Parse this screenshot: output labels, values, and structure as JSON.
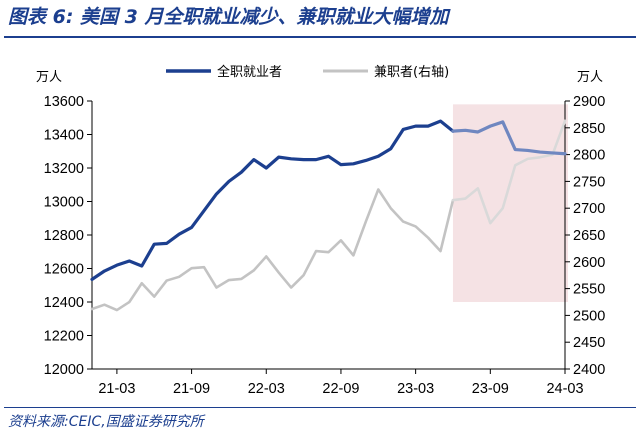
{
  "figure": {
    "title": "图表 6:  美国 3 月全职就业减少、兼职就业大幅增加",
    "source": "资料来源:CEIC,国盛证券研究所"
  },
  "chart_data": {
    "type": "line",
    "title": "",
    "x": [
      "21-01",
      "21-02",
      "21-03",
      "21-04",
      "21-05",
      "21-06",
      "21-07",
      "21-08",
      "21-09",
      "21-10",
      "21-11",
      "21-12",
      "22-01",
      "22-02",
      "22-03",
      "22-04",
      "22-05",
      "22-06",
      "22-07",
      "22-08",
      "22-09",
      "22-10",
      "22-11",
      "22-12",
      "23-01",
      "23-02",
      "23-03",
      "23-04",
      "23-05",
      "23-06",
      "23-07",
      "23-08",
      "23-09",
      "23-10",
      "23-11",
      "23-12",
      "24-01",
      "24-02",
      "24-03"
    ],
    "x_tick_labels": [
      "21-03",
      "21-09",
      "22-03",
      "22-09",
      "23-03",
      "23-09",
      "24-03"
    ],
    "left_axis": {
      "unit": "万人",
      "range": [
        12000,
        13600
      ],
      "ticks": [
        12000,
        12200,
        12400,
        12600,
        12800,
        13000,
        13200,
        13400,
        13600
      ]
    },
    "right_axis": {
      "unit": "万人",
      "range": [
        2400,
        2900
      ],
      "ticks": [
        2400,
        2450,
        2500,
        2550,
        2600,
        2650,
        2700,
        2750,
        2800,
        2850,
        2900
      ]
    },
    "series": [
      {
        "name": "全职就业者",
        "axis": "left",
        "color": "#1c3f8f",
        "highlight_color": "#6f87c0",
        "values": [
          12535,
          12585,
          12620,
          12645,
          12615,
          12745,
          12750,
          12805,
          12845,
          12945,
          13045,
          13120,
          13175,
          13250,
          13200,
          13265,
          13255,
          13250,
          13250,
          13270,
          13220,
          13225,
          13245,
          13270,
          13315,
          13430,
          13450,
          13450,
          13480,
          13420,
          13425,
          13415,
          13450,
          13475,
          13310,
          13305,
          13295,
          13290,
          13285
        ]
      },
      {
        "name": "兼职者(右轴)",
        "axis": "right",
        "color": "#c3c3c3",
        "highlight_color": "#d9d9d9",
        "values": [
          2512,
          2520,
          2510,
          2525,
          2560,
          2535,
          2565,
          2572,
          2588,
          2590,
          2552,
          2566,
          2568,
          2584,
          2610,
          2580,
          2552,
          2575,
          2620,
          2618,
          2640,
          2612,
          2675,
          2735,
          2700,
          2675,
          2666,
          2645,
          2620,
          2715,
          2718,
          2737,
          2672,
          2700,
          2780,
          2792,
          2795,
          2800,
          2863
        ]
      }
    ],
    "highlight": {
      "from": "23-06",
      "to": "24-03",
      "color": "#f5e2e4"
    },
    "legend_position": "top",
    "grid": false
  }
}
